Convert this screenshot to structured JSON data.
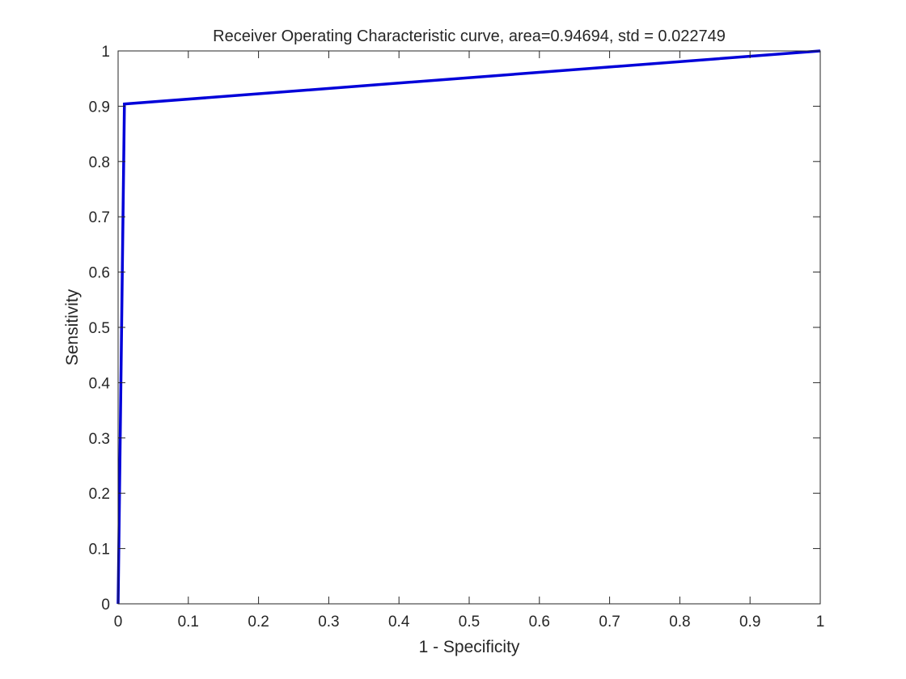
{
  "chart_data": {
    "type": "line",
    "title": "Receiver Operating Characteristic curve, area=0.94694, std = 0.022749",
    "xlabel": "1 - Specificity",
    "ylabel": "Sensitivity",
    "xlim": [
      0,
      1
    ],
    "ylim": [
      0,
      1
    ],
    "x_ticks": [
      0,
      0.1,
      0.2,
      0.3,
      0.4,
      0.5,
      0.6,
      0.7,
      0.8,
      0.9,
      1
    ],
    "y_ticks": [
      0,
      0.1,
      0.2,
      0.3,
      0.4,
      0.5,
      0.6,
      0.7,
      0.8,
      0.9,
      1
    ],
    "x_tick_labels": [
      "0",
      "0.1",
      "0.2",
      "0.3",
      "0.4",
      "0.5",
      "0.6",
      "0.7",
      "0.8",
      "0.9",
      "1"
    ],
    "y_tick_labels": [
      "0",
      "0.1",
      "0.2",
      "0.3",
      "0.4",
      "0.5",
      "0.6",
      "0.7",
      "0.8",
      "0.9",
      "1"
    ],
    "grid": false,
    "box": true,
    "series": [
      {
        "color": "#0000d9",
        "x": [
          0,
          0.009,
          1
        ],
        "y": [
          0,
          0.904,
          1
        ]
      }
    ]
  }
}
